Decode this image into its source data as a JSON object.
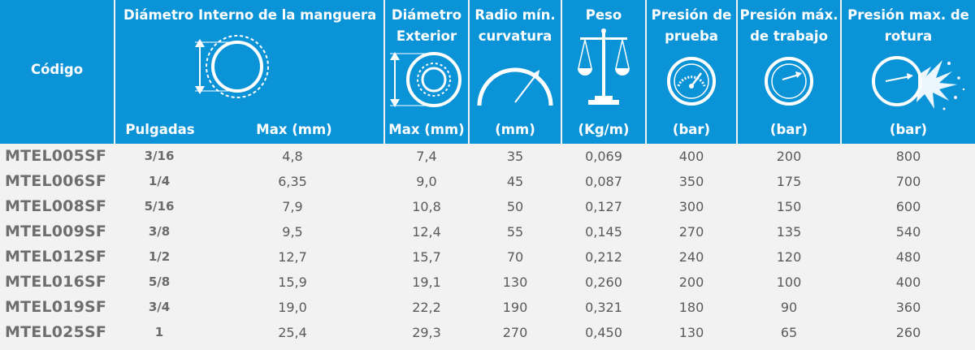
{
  "header": {
    "codigo": "Código",
    "diam_interno_title": "Diámetro Interno de la manguera",
    "pulgadas": "Pulgadas",
    "max_mm": "Max (mm)",
    "diam_ext_title_1": "Diámetro",
    "diam_ext_title_2": "Exterior",
    "diam_ext_unit": "Max (mm)",
    "radio_title_1": "Radio mín.",
    "radio_title_2": "curvatura",
    "radio_unit": "(mm)",
    "peso_title": "Peso",
    "peso_unit": "(Kg/m)",
    "prueba_title_1": "Presión de",
    "prueba_title_2": "prueba",
    "prueba_unit": "(bar)",
    "trabajo_title_1": "Presión máx.",
    "trabajo_title_2": "de trabajo",
    "trabajo_unit": "(bar)",
    "rotura_title_1": "Presión max. de",
    "rotura_title_2": "rotura",
    "rotura_unit": "(bar)"
  },
  "icons": {
    "inner_diameter": "hose-inner-diameter-icon",
    "outer_diameter": "hose-outer-diameter-icon",
    "bend_radius": "bend-radius-icon",
    "weight": "balance-scale-icon",
    "test_pressure": "pressure-gauge-icon",
    "working_pressure": "gauge-dial-icon",
    "burst_pressure": "burst-gauge-icon"
  },
  "colors": {
    "header_bg": "#0b93d8",
    "body_bg": "#f2f2f2",
    "text": "#5a5a5a"
  },
  "rows": [
    {
      "codigo": "MTEL005SF",
      "pulgadas": "3/16",
      "max_mm": "4,8",
      "ext_mm": "7,4",
      "radio": "35",
      "peso": "0,069",
      "prueba": "400",
      "trabajo": "200",
      "rotura": "800"
    },
    {
      "codigo": "MTEL006SF",
      "pulgadas": "1/4",
      "max_mm": "6,35",
      "ext_mm": "9,0",
      "radio": "45",
      "peso": "0,087",
      "prueba": "350",
      "trabajo": "175",
      "rotura": "700"
    },
    {
      "codigo": "MTEL008SF",
      "pulgadas": "5/16",
      "max_mm": "7,9",
      "ext_mm": "10,8",
      "radio": "50",
      "peso": "0,127",
      "prueba": "300",
      "trabajo": "150",
      "rotura": "600"
    },
    {
      "codigo": "MTEL009SF",
      "pulgadas": "3/8",
      "max_mm": "9,5",
      "ext_mm": "12,4",
      "radio": "55",
      "peso": "0,145",
      "prueba": "270",
      "trabajo": "135",
      "rotura": "540"
    },
    {
      "codigo": "MTEL012SF",
      "pulgadas": "1/2",
      "max_mm": "12,7",
      "ext_mm": "15,7",
      "radio": "70",
      "peso": "0,212",
      "prueba": "240",
      "trabajo": "120",
      "rotura": "480"
    },
    {
      "codigo": "MTEL016SF",
      "pulgadas": "5/8",
      "max_mm": "15,9",
      "ext_mm": "19,1",
      "radio": "130",
      "peso": "0,260",
      "prueba": "200",
      "trabajo": "100",
      "rotura": "400"
    },
    {
      "codigo": "MTEL019SF",
      "pulgadas": "3/4",
      "max_mm": "19,0",
      "ext_mm": "22,2",
      "radio": "190",
      "peso": "0,321",
      "prueba": "180",
      "trabajo": "90",
      "rotura": "360"
    },
    {
      "codigo": "MTEL025SF",
      "pulgadas": "1",
      "max_mm": "25,4",
      "ext_mm": "29,3",
      "radio": "270",
      "peso": "0,450",
      "prueba": "130",
      "trabajo": "65",
      "rotura": "260"
    }
  ]
}
